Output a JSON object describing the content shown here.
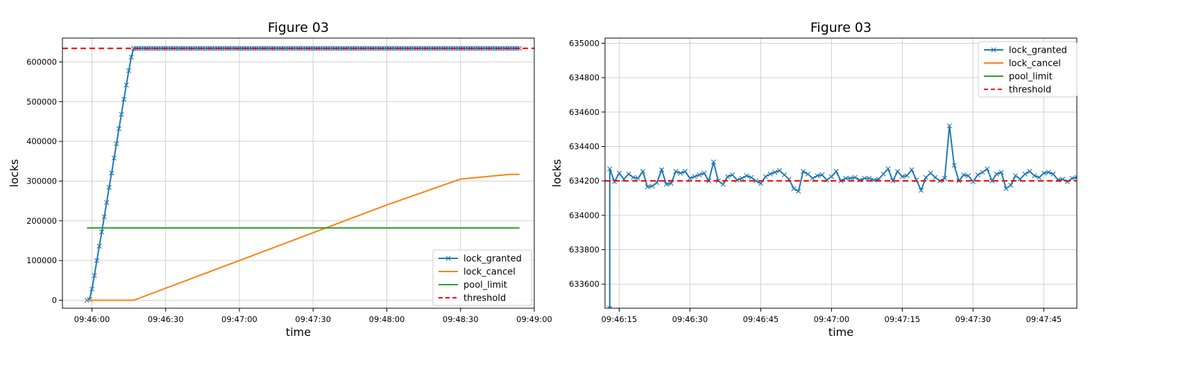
{
  "chart_data": [
    {
      "type": "line",
      "title": "Figure 03",
      "xlabel": "time",
      "ylabel": "locks",
      "xlim": [
        "09:45:48",
        "09:49:00"
      ],
      "ylim": [
        -20000,
        660000
      ],
      "x_ticks": [
        "09:46:00",
        "09:46:30",
        "09:47:00",
        "09:47:30",
        "09:48:00",
        "09:48:30",
        "09:49:00"
      ],
      "y_ticks": [
        "0",
        "100000",
        "200000",
        "300000",
        "400000",
        "500000",
        "600000"
      ],
      "grid": true,
      "legend_position": "lower-right",
      "series": [
        {
          "name": "lock_granted",
          "color": "#1f77b4",
          "style": "solid",
          "marker": "x",
          "points": [
            [
              "09:45:58",
              0
            ],
            [
              "09:45:59",
              2000
            ],
            [
              "09:46:00",
              28000
            ],
            [
              "09:46:01",
              62000
            ],
            [
              "09:46:02",
              100000
            ],
            [
              "09:46:03",
              136000
            ],
            [
              "09:46:04",
              172000
            ],
            [
              "09:46:05",
              210000
            ],
            [
              "09:46:06",
              246000
            ],
            [
              "09:46:07",
              284000
            ],
            [
              "09:46:08",
              320000
            ],
            [
              "09:46:09",
              358000
            ],
            [
              "09:46:10",
              394000
            ],
            [
              "09:46:11",
              432000
            ],
            [
              "09:46:12",
              468000
            ],
            [
              "09:46:13",
              506000
            ],
            [
              "09:46:14",
              542000
            ],
            [
              "09:46:15",
              578000
            ],
            [
              "09:46:16",
              612000
            ],
            [
              "09:46:17",
              634200
            ],
            [
              "09:48:54",
              634200
            ]
          ]
        },
        {
          "name": "lock_cancel",
          "color": "#ff7f0e",
          "style": "solid",
          "points": [
            [
              "09:45:58",
              0
            ],
            [
              "09:46:17",
              0
            ],
            [
              "09:47:00",
              100000
            ],
            [
              "09:47:30",
              170000
            ],
            [
              "09:48:00",
              240000
            ],
            [
              "09:48:30",
              305000
            ],
            [
              "09:48:50",
              317000
            ],
            [
              "09:48:54",
              317000
            ]
          ]
        },
        {
          "name": "pool_limit",
          "color": "#2ca02c",
          "style": "solid",
          "points": [
            [
              "09:45:58",
              182000
            ],
            [
              "09:48:54",
              182000
            ]
          ]
        },
        {
          "name": "threshold",
          "color": "#ff0000",
          "style": "dashed",
          "value": 634200
        }
      ]
    },
    {
      "type": "line",
      "title": "Figure 03",
      "xlabel": "time",
      "ylabel": "locks",
      "xlim": [
        "09:46:12",
        "09:47:52"
      ],
      "ylim": [
        633460,
        635030
      ],
      "x_ticks": [
        "09:46:15",
        "09:46:30",
        "09:46:45",
        "09:47:00",
        "09:47:15",
        "09:47:30",
        "09:47:45"
      ],
      "y_ticks": [
        "633600",
        "633800",
        "634000",
        "634200",
        "634400",
        "634600",
        "634800",
        "635000"
      ],
      "grid": true,
      "legend_position": "upper-right",
      "lock_granted_start": [
        "09:46:13",
        633460
      ],
      "series": [
        {
          "name": "lock_granted",
          "color": "#1f77b4",
          "style": "solid",
          "marker": "x",
          "values_every_second_from_09:46:13": [
            634270,
            634195,
            634245,
            634210,
            634240,
            634220,
            634215,
            634255,
            634165,
            634170,
            634190,
            634265,
            634180,
            634185,
            634255,
            634245,
            634255,
            634215,
            634225,
            634235,
            634245,
            634200,
            634310,
            634200,
            634180,
            634225,
            634235,
            634205,
            634215,
            634230,
            634220,
            634200,
            634185,
            634225,
            634240,
            634250,
            634260,
            634235,
            634210,
            634155,
            634140,
            634255,
            634240,
            634215,
            634230,
            634235,
            634205,
            634225,
            634255,
            634200,
            634215,
            634215,
            634220,
            634205,
            634215,
            634215,
            634205,
            634210,
            634240,
            634270,
            634200,
            634255,
            634225,
            634230,
            634265,
            634205,
            634145,
            634220,
            634245,
            634220,
            634200,
            634215,
            634520,
            634290,
            634200,
            634235,
            634230,
            634195,
            634235,
            634250,
            634270,
            634200,
            634240,
            634250,
            634155,
            634175,
            634230,
            634210,
            634240,
            634255,
            634230,
            634220,
            634245,
            634250,
            634240,
            634205,
            634210,
            634195,
            634215,
            634220,
            634240
          ]
        },
        {
          "name": "lock_cancel",
          "color": "#ff7f0e",
          "style": "solid",
          "points": []
        },
        {
          "name": "pool_limit",
          "color": "#2ca02c",
          "style": "solid",
          "points": []
        },
        {
          "name": "threshold",
          "color": "#ff0000",
          "style": "dashed",
          "value": 634200
        }
      ]
    }
  ]
}
